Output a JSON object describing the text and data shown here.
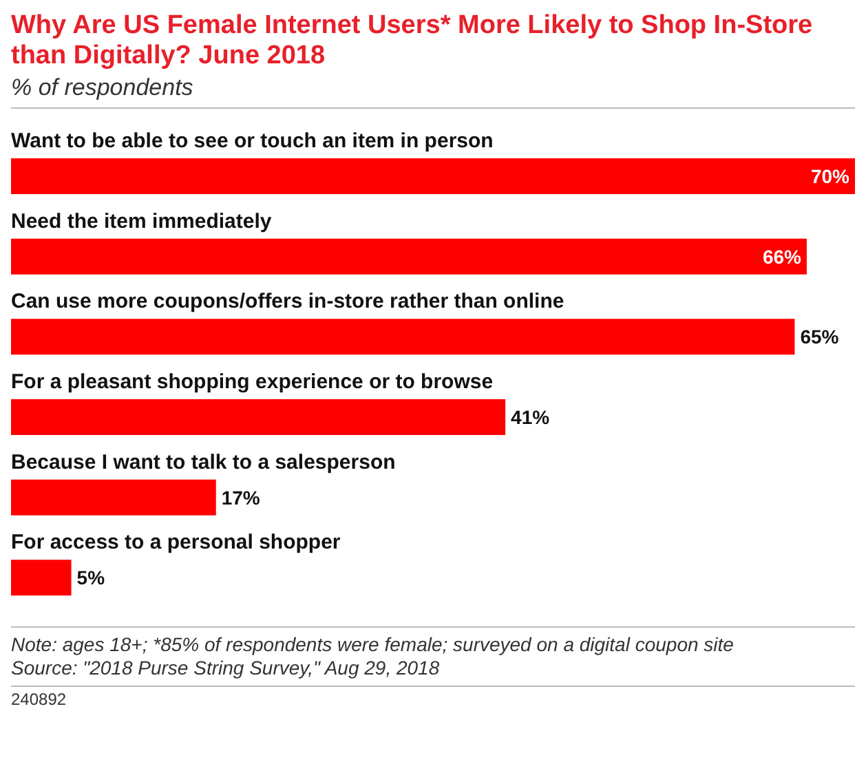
{
  "chart_data": {
    "type": "bar",
    "orientation": "horizontal",
    "title": "Why Are US Female Internet Users* More Likely to Shop In-Store than Digitally? June 2018",
    "subtitle": "% of respondents",
    "categories": [
      "Want to be able to see or touch an item in person",
      "Need the item immediately",
      "Can use more coupons/offers in-store rather than online",
      "For a pleasant shopping experience or to browse",
      "Because I want to talk to a salesperson",
      "For access to a personal shopper"
    ],
    "values": [
      70,
      66,
      65,
      41,
      17,
      5
    ],
    "value_labels": [
      "70%",
      "66%",
      "65%",
      "41%",
      "17%",
      "5%"
    ],
    "color": "#ff0000",
    "annotations": [
      "Note: ages 18+; *85% of respondents were female; surveyed on a digital coupon site",
      "Source: \"2018 Purse String Survey,\" Aug 29, 2018",
      "240892"
    ]
  }
}
